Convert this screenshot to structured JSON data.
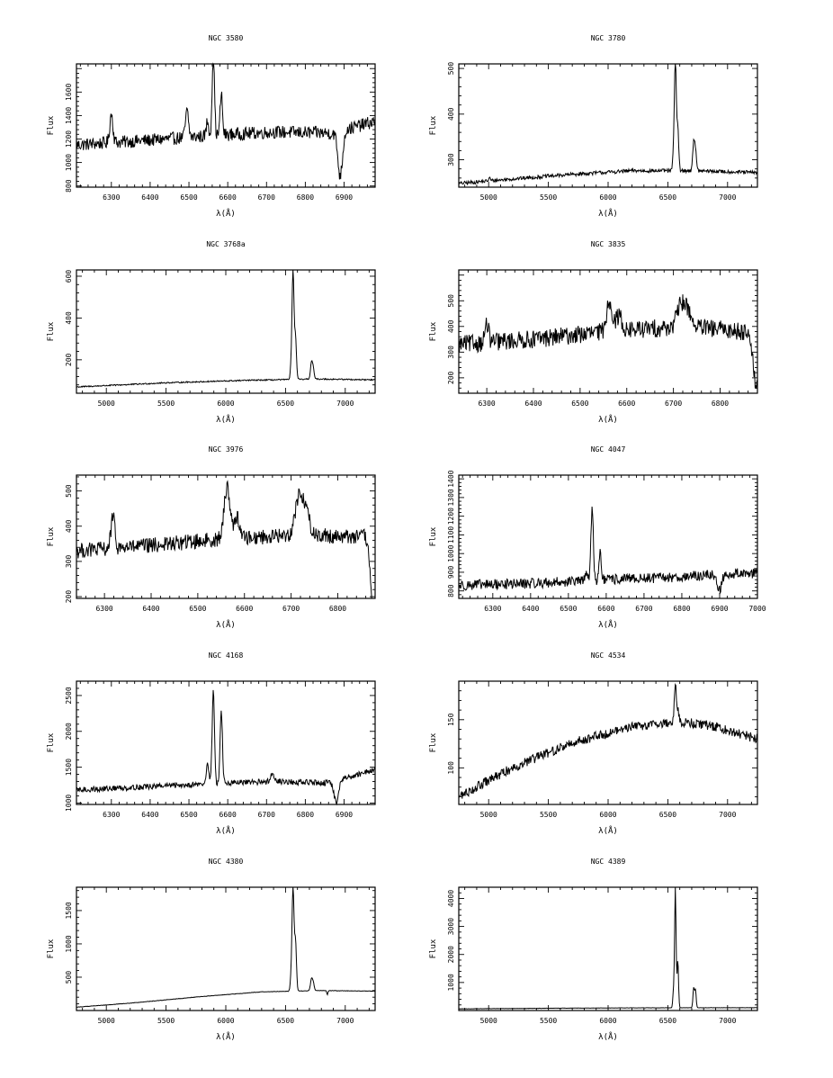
{
  "chart_data": [
    {
      "type": "line",
      "title": "NGC 3580",
      "xlabel": "λ(Å)",
      "ylabel": "Flux",
      "xlim": [
        6210,
        6980
      ],
      "ylim": [
        790,
        1840
      ],
      "xticks": [
        6300,
        6400,
        6500,
        6600,
        6700,
        6800,
        6900
      ],
      "xtick_labels": [
        "6300",
        "6400",
        "6500",
        "6600",
        "6700",
        "6800",
        "6900"
      ],
      "yticks": [
        800,
        1000,
        1200,
        1400,
        1600
      ],
      "ytick_labels": [
        "800",
        "1000",
        "1200",
        "1400",
        "1600"
      ],
      "series": [
        {
          "baseline": [
            [
              6210,
              1150
            ],
            [
              6400,
              1190
            ],
            [
              6560,
              1230
            ],
            [
              6720,
              1260
            ],
            [
              6870,
              1250
            ],
            [
              6980,
              1350
            ]
          ],
          "noise": 55,
          "lines": [
            [
              6300,
              250,
              4
            ],
            [
              6495,
              220,
              4
            ],
            [
              6562.8,
              700,
              3
            ],
            [
              6583.4,
              350,
              3
            ],
            [
              6548,
              130,
              3
            ],
            [
              6890,
              -380,
              6
            ]
          ]
        }
      ]
    },
    {
      "type": "line",
      "title": "NGC 3780",
      "xlabel": "λ(Å)",
      "ylabel": "Flux",
      "xlim": [
        4750,
        7250
      ],
      "ylim": [
        240,
        510
      ],
      "xticks": [
        5000,
        5500,
        6000,
        6500,
        7000
      ],
      "xtick_labels": [
        "5000",
        "5500",
        "6000",
        "6500",
        "7000"
      ],
      "yticks": [
        300,
        400,
        500
      ],
      "ytick_labels": [
        "300",
        "400",
        "500"
      ],
      "series": [
        {
          "baseline": [
            [
              4750,
              248
            ],
            [
              5200,
              258
            ],
            [
              5700,
              268
            ],
            [
              6200,
              276
            ],
            [
              6700,
              276
            ],
            [
              7250,
              272
            ]
          ],
          "noise": 4,
          "lines": [
            [
              6562.8,
              240,
              8
            ],
            [
              6583.4,
              90,
              8
            ],
            [
              6548,
              30,
              8
            ],
            [
              6716,
              60,
              8
            ],
            [
              6731,
              45,
              8
            ],
            [
              5007,
              6,
              8
            ]
          ]
        }
      ]
    },
    {
      "type": "line",
      "title": "NGC 3768a",
      "xlabel": "λ(Å)",
      "ylabel": "Flux",
      "xlim": [
        4750,
        7250
      ],
      "ylim": [
        40,
        630
      ],
      "xticks": [
        5000,
        5500,
        6000,
        6500,
        7000
      ],
      "xtick_labels": [
        "5000",
        "5500",
        "6000",
        "6500",
        "7000"
      ],
      "yticks": [
        200,
        400,
        600
      ],
      "ytick_labels": [
        "200",
        "400",
        "600"
      ],
      "series": [
        {
          "baseline": [
            [
              4750,
              70
            ],
            [
              5500,
              90
            ],
            [
              6200,
              102
            ],
            [
              6800,
              108
            ],
            [
              7250,
              104
            ]
          ],
          "noise": 3,
          "lines": [
            [
              6562.8,
              520,
              8
            ],
            [
              6583.4,
              200,
              8
            ],
            [
              6548,
              60,
              8
            ],
            [
              6716,
              75,
              8
            ],
            [
              6731,
              55,
              8
            ]
          ]
        }
      ]
    },
    {
      "type": "line",
      "title": "NGC 3835",
      "xlabel": "λ(Å)",
      "ylabel": "Flux",
      "xlim": [
        6240,
        6880
      ],
      "ylim": [
        140,
        620
      ],
      "xticks": [
        6300,
        6400,
        6500,
        6600,
        6700,
        6800
      ],
      "xtick_labels": [
        "6300",
        "6400",
        "6500",
        "6600",
        "6700",
        "6800"
      ],
      "yticks": [
        200,
        300,
        400,
        500
      ],
      "ytick_labels": [
        "200",
        "300",
        "400",
        "500"
      ],
      "series": [
        {
          "baseline": [
            [
              6240,
              330
            ],
            [
              6400,
              350
            ],
            [
              6560,
              380
            ],
            [
              6720,
              400
            ],
            [
              6860,
              380
            ],
            [
              6880,
              300
            ]
          ],
          "noise": 35,
          "lines": [
            [
              6562.8,
              120,
              6
            ],
            [
              6583.4,
              60,
              6
            ],
            [
              6716,
              80,
              8
            ],
            [
              6731,
              60,
              8
            ],
            [
              6300,
              70,
              4
            ],
            [
              6878,
              -150,
              6
            ]
          ]
        }
      ]
    },
    {
      "type": "line",
      "title": "NGC 3976",
      "xlabel": "λ(Å)",
      "ylabel": "Flux",
      "xlim": [
        6240,
        6880
      ],
      "ylim": [
        195,
        545
      ],
      "xticks": [
        6300,
        6400,
        6500,
        6600,
        6700,
        6800
      ],
      "xtick_labels": [
        "6300",
        "6400",
        "6500",
        "6600",
        "6700",
        "6800"
      ],
      "yticks": [
        200,
        300,
        400,
        500
      ],
      "ytick_labels": [
        "200",
        "300",
        "400",
        "500"
      ],
      "series": [
        {
          "baseline": [
            [
              6240,
              330
            ],
            [
              6400,
              345
            ],
            [
              6560,
              365
            ],
            [
              6720,
              375
            ],
            [
              6860,
              370
            ],
            [
              6880,
              280
            ]
          ],
          "noise": 22,
          "lines": [
            [
              6562.8,
              150,
              6
            ],
            [
              6583.4,
              60,
              6
            ],
            [
              6716,
              100,
              8
            ],
            [
              6731,
              70,
              8
            ],
            [
              6318,
              90,
              4
            ],
            [
              6877,
              -150,
              6
            ]
          ]
        }
      ]
    },
    {
      "type": "line",
      "title": "NGC 4047",
      "xlabel": "λ(Å)",
      "ylabel": "Flux",
      "xlim": [
        6210,
        7000
      ],
      "ylim": [
        760,
        1420
      ],
      "xticks": [
        6300,
        6400,
        6500,
        6600,
        6700,
        6800,
        6900,
        7000
      ],
      "xtick_labels": [
        "6300",
        "6400",
        "6500",
        "6600",
        "6700",
        "6800",
        "6900",
        "7000"
      ],
      "yticks": [
        800,
        900,
        1000,
        1100,
        1200,
        1300,
        1400
      ],
      "ytick_labels": [
        "800",
        "900",
        "1000",
        "1100",
        "1200",
        "1300",
        "1400"
      ],
      "series": [
        {
          "baseline": [
            [
              6210,
              830
            ],
            [
              6400,
              840
            ],
            [
              6600,
              860
            ],
            [
              6800,
              875
            ],
            [
              7000,
              900
            ]
          ],
          "noise": 28,
          "lines": [
            [
              6562.8,
              400,
              3
            ],
            [
              6583.4,
              150,
              3
            ],
            [
              6548,
              60,
              3
            ],
            [
              6900,
              -80,
              6
            ]
          ]
        }
      ]
    },
    {
      "type": "line",
      "title": "NGC 4168",
      "xlabel": "λ(Å)",
      "ylabel": "Flux",
      "xlim": [
        6210,
        6980
      ],
      "ylim": [
        980,
        2700
      ],
      "xticks": [
        6300,
        6400,
        6500,
        6600,
        6700,
        6800,
        6900
      ],
      "xtick_labels": [
        "6300",
        "6400",
        "6500",
        "6600",
        "6700",
        "6800",
        "6900"
      ],
      "yticks": [
        1000,
        1500,
        2000,
        2500
      ],
      "ytick_labels": [
        "1000",
        "1500",
        "2000",
        "2500"
      ],
      "series": [
        {
          "baseline": [
            [
              6210,
              1180
            ],
            [
              6400,
              1230
            ],
            [
              6560,
              1270
            ],
            [
              6720,
              1300
            ],
            [
              6860,
              1280
            ],
            [
              6980,
              1470
            ]
          ],
          "noise": 40,
          "lines": [
            [
              6562.8,
              1300,
              3
            ],
            [
              6583.4,
              1000,
              3
            ],
            [
              6548,
              300,
              3
            ],
            [
              6716,
              100,
              6
            ],
            [
              6880,
              -300,
              6
            ]
          ]
        }
      ]
    },
    {
      "type": "line",
      "title": "NGC 4534",
      "xlabel": "λ(Å)",
      "ylabel": "Flux",
      "xlim": [
        4750,
        7250
      ],
      "ylim": [
        62,
        190
      ],
      "xticks": [
        5000,
        5500,
        6000,
        6500,
        7000
      ],
      "xtick_labels": [
        "5000",
        "5500",
        "6000",
        "6500",
        "7000"
      ],
      "yticks": [
        100,
        150
      ],
      "ytick_labels": [
        "100",
        "150"
      ],
      "series": [
        {
          "baseline": [
            [
              4750,
              70
            ],
            [
              5200,
              100
            ],
            [
              5700,
              126
            ],
            [
              6200,
              143
            ],
            [
              6600,
              148
            ],
            [
              6900,
              143
            ],
            [
              7250,
              130
            ]
          ],
          "noise": 5,
          "lines": [
            [
              6562.8,
              40,
              8
            ],
            [
              6583.4,
              12,
              8
            ]
          ]
        }
      ]
    },
    {
      "type": "line",
      "title": "NGC 4380",
      "xlabel": "λ(Å)",
      "ylabel": "Flux",
      "xlim": [
        4750,
        7250
      ],
      "ylim": [
        0,
        1850
      ],
      "xticks": [
        5000,
        5500,
        6000,
        6500,
        7000
      ],
      "xtick_labels": [
        "5000",
        "5500",
        "6000",
        "6500",
        "7000"
      ],
      "yticks": [
        500,
        1000,
        1500
      ],
      "ytick_labels": [
        "500",
        "1000",
        "1500"
      ],
      "series": [
        {
          "baseline": [
            [
              4750,
              50
            ],
            [
              5200,
              110
            ],
            [
              5800,
              210
            ],
            [
              6300,
              280
            ],
            [
              6800,
              300
            ],
            [
              7250,
              290
            ]
          ],
          "noise": 3,
          "lines": [
            [
              6562.8,
              1550,
              8
            ],
            [
              6583.4,
              750,
              8
            ],
            [
              6548,
              200,
              8
            ],
            [
              6716,
              160,
              8
            ],
            [
              6731,
              130,
              8
            ],
            [
              6850,
              -60,
              5
            ]
          ]
        }
      ]
    },
    {
      "type": "line",
      "title": "NGC 4389",
      "xlabel": "λ(Å)",
      "ylabel": "Flux",
      "xlim": [
        4750,
        7250
      ],
      "ylim": [
        0,
        4400
      ],
      "xticks": [
        5000,
        5500,
        6000,
        6500,
        7000
      ],
      "xtick_labels": [
        "5000",
        "5500",
        "6000",
        "6500",
        "7000"
      ],
      "yticks": [
        1000,
        2000,
        3000,
        4000
      ],
      "ytick_labels": [
        "1000",
        "2000",
        "3000",
        "4000"
      ],
      "series": [
        {
          "baseline": [
            [
              4750,
              60
            ],
            [
              5500,
              80
            ],
            [
              6200,
              95
            ],
            [
              7250,
              100
            ]
          ],
          "noise": 4,
          "lines": [
            [
              6562.8,
              4300,
              6
            ],
            [
              6583.4,
              1700,
              6
            ],
            [
              6548,
              600,
              6
            ],
            [
              6716,
              700,
              6
            ],
            [
              6731,
              650,
              6
            ]
          ]
        }
      ]
    }
  ]
}
